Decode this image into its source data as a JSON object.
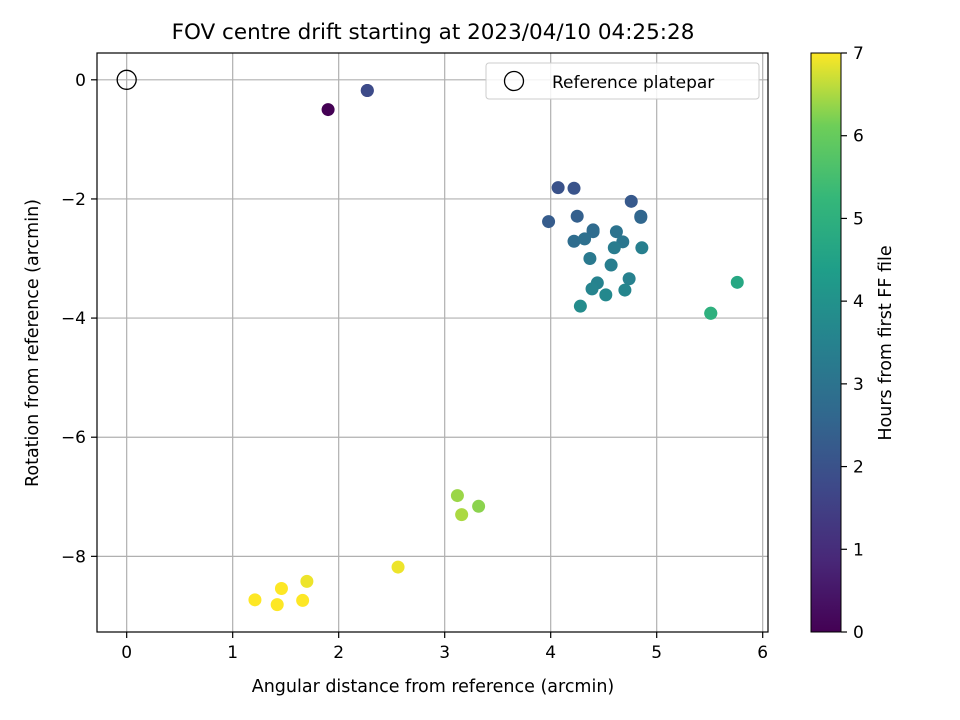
{
  "chart_data": {
    "type": "scatter",
    "title": "FOV centre drift starting at 2023/04/10 04:25:28",
    "xlabel": "Angular distance from reference (arcmin)",
    "ylabel": "Rotation from reference (arcmin)",
    "xlim": [
      -0.28,
      6.05
    ],
    "ylim": [
      -9.27,
      0.45
    ],
    "xticks": [
      0,
      1,
      2,
      3,
      4,
      5,
      6
    ],
    "yticks": [
      0,
      -2,
      -4,
      -6,
      -8
    ],
    "xtick_labels": [
      "0",
      "1",
      "2",
      "3",
      "4",
      "5",
      "6"
    ],
    "ytick_labels": [
      "0",
      "−2",
      "−4",
      "−6",
      "−8"
    ],
    "grid": true,
    "legend": {
      "position": "top-right",
      "entries": [
        "Reference platepar"
      ]
    },
    "reference_point": {
      "x": 0,
      "y": 0
    },
    "colorbar": {
      "label": "Hours from first FF file",
      "colormap": "viridis",
      "range": [
        0,
        7
      ],
      "ticks": [
        0,
        1,
        2,
        3,
        4,
        5,
        6,
        7
      ],
      "tick_labels": [
        "0",
        "1",
        "2",
        "3",
        "4",
        "5",
        "6",
        "7"
      ]
    },
    "points": [
      {
        "x": 1.9,
        "y": -0.5,
        "hours": 0.0
      },
      {
        "x": 2.27,
        "y": -0.18,
        "hours": 1.5
      },
      {
        "x": 2.27,
        "y": -0.18,
        "hours": 1.8
      },
      {
        "x": 4.07,
        "y": -1.81,
        "hours": 2.0
      },
      {
        "x": 4.22,
        "y": -1.82,
        "hours": 2.05
      },
      {
        "x": 4.76,
        "y": -2.04,
        "hours": 2.2
      },
      {
        "x": 3.98,
        "y": -2.38,
        "hours": 2.3
      },
      {
        "x": 4.25,
        "y": -2.29,
        "hours": 2.4
      },
      {
        "x": 4.85,
        "y": -2.29,
        "hours": 2.5
      },
      {
        "x": 4.85,
        "y": -2.31,
        "hours": 2.6
      },
      {
        "x": 4.4,
        "y": -2.52,
        "hours": 2.7
      },
      {
        "x": 4.4,
        "y": -2.55,
        "hours": 2.75
      },
      {
        "x": 4.22,
        "y": -2.71,
        "hours": 2.8
      },
      {
        "x": 4.32,
        "y": -2.67,
        "hours": 2.9
      },
      {
        "x": 4.62,
        "y": -2.55,
        "hours": 3.0
      },
      {
        "x": 4.68,
        "y": -2.72,
        "hours": 3.1
      },
      {
        "x": 4.37,
        "y": -3.0,
        "hours": 3.2
      },
      {
        "x": 4.6,
        "y": -2.82,
        "hours": 3.3
      },
      {
        "x": 4.57,
        "y": -3.11,
        "hours": 3.35
      },
      {
        "x": 4.86,
        "y": -2.82,
        "hours": 3.4
      },
      {
        "x": 4.74,
        "y": -3.34,
        "hours": 3.45
      },
      {
        "x": 4.44,
        "y": -3.41,
        "hours": 3.5
      },
      {
        "x": 4.39,
        "y": -3.51,
        "hours": 3.55
      },
      {
        "x": 4.7,
        "y": -3.53,
        "hours": 3.6
      },
      {
        "x": 4.52,
        "y": -3.61,
        "hours": 3.7
      },
      {
        "x": 4.28,
        "y": -3.8,
        "hours": 3.8
      },
      {
        "x": 5.51,
        "y": -3.92,
        "hours": 4.9
      },
      {
        "x": 5.51,
        "y": -3.92,
        "hours": 5.0
      },
      {
        "x": 5.76,
        "y": -3.4,
        "hours": 4.7
      },
      {
        "x": 3.12,
        "y": -6.98,
        "hours": 6.4
      },
      {
        "x": 3.32,
        "y": -7.16,
        "hours": 6.3
      },
      {
        "x": 3.16,
        "y": -7.3,
        "hours": 6.5
      },
      {
        "x": 2.56,
        "y": -8.18,
        "hours": 6.9
      },
      {
        "x": 1.7,
        "y": -8.42,
        "hours": 6.9
      },
      {
        "x": 1.46,
        "y": -8.54,
        "hours": 7.0
      },
      {
        "x": 1.21,
        "y": -8.73,
        "hours": 7.0
      },
      {
        "x": 1.66,
        "y": -8.74,
        "hours": 7.0
      },
      {
        "x": 1.42,
        "y": -8.81,
        "hours": 7.0
      }
    ]
  }
}
